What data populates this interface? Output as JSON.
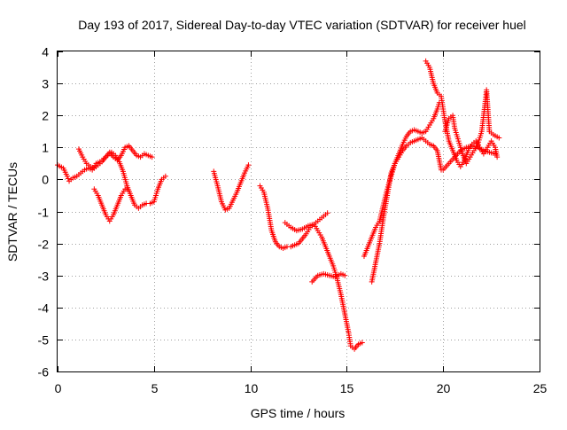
{
  "chart_data": {
    "type": "scatter",
    "title": "Day 193 of 2017, Sidereal Day-to-day VTEC variation (SDTVAR) for receiver huel",
    "xlabel": "GPS time / hours",
    "ylabel": "SDTVAR / TECUs",
    "xlim": [
      0,
      25
    ],
    "ylim": [
      -6,
      4
    ],
    "xticks": [
      0,
      5,
      10,
      15,
      20,
      25
    ],
    "yticks": [
      -6,
      -5,
      -4,
      -3,
      -2,
      -1,
      0,
      1,
      2,
      3,
      4
    ],
    "grid": true,
    "marker": "+",
    "color": "#ff0000",
    "series": [
      {
        "name": "SDTVAR",
        "segments": [
          [
            [
              0.0,
              0.45
            ],
            [
              0.3,
              0.35
            ],
            [
              0.5,
              0.1
            ],
            [
              0.6,
              -0.05
            ],
            [
              0.8,
              0.05
            ],
            [
              1.0,
              0.1
            ],
            [
              1.2,
              0.2
            ],
            [
              1.4,
              0.3
            ],
            [
              1.6,
              0.35
            ],
            [
              1.8,
              0.3
            ],
            [
              2.0,
              0.5
            ],
            [
              2.2,
              0.55
            ],
            [
              2.4,
              0.65
            ],
            [
              2.6,
              0.75
            ],
            [
              2.8,
              0.85
            ],
            [
              3.0,
              0.75
            ],
            [
              3.2,
              0.55
            ],
            [
              3.4,
              0.25
            ],
            [
              3.6,
              -0.2
            ],
            [
              3.8,
              -0.5
            ],
            [
              4.0,
              -0.8
            ],
            [
              4.2,
              -0.9
            ],
            [
              4.4,
              -0.8
            ],
            [
              4.6,
              -0.75
            ],
            [
              4.8,
              -0.75
            ],
            [
              5.0,
              -0.7
            ],
            [
              5.2,
              -0.3
            ],
            [
              5.4,
              0.0
            ],
            [
              5.6,
              0.1
            ]
          ],
          [
            [
              1.1,
              0.95
            ],
            [
              1.3,
              0.7
            ],
            [
              1.5,
              0.5
            ],
            [
              1.7,
              0.4
            ],
            [
              1.9,
              0.35
            ],
            [
              2.1,
              0.45
            ],
            [
              2.3,
              0.55
            ],
            [
              2.5,
              0.7
            ],
            [
              2.7,
              0.85
            ],
            [
              2.9,
              0.7
            ],
            [
              3.1,
              0.6
            ],
            [
              3.3,
              0.75
            ],
            [
              3.5,
              1.0
            ],
            [
              3.7,
              1.05
            ],
            [
              3.9,
              0.9
            ],
            [
              4.1,
              0.75
            ],
            [
              4.3,
              0.7
            ],
            [
              4.5,
              0.8
            ],
            [
              4.7,
              0.75
            ],
            [
              4.9,
              0.7
            ]
          ],
          [
            [
              1.9,
              -0.3
            ],
            [
              2.1,
              -0.5
            ],
            [
              2.3,
              -0.8
            ],
            [
              2.5,
              -1.1
            ],
            [
              2.7,
              -1.3
            ],
            [
              2.9,
              -1.1
            ],
            [
              3.1,
              -0.8
            ],
            [
              3.3,
              -0.5
            ],
            [
              3.5,
              -0.3
            ],
            [
              3.6,
              -0.3
            ]
          ],
          [
            [
              8.1,
              0.25
            ],
            [
              8.3,
              -0.2
            ],
            [
              8.5,
              -0.7
            ],
            [
              8.7,
              -0.95
            ],
            [
              8.9,
              -0.9
            ],
            [
              9.1,
              -0.65
            ],
            [
              9.3,
              -0.4
            ],
            [
              9.5,
              -0.1
            ],
            [
              9.7,
              0.2
            ],
            [
              9.9,
              0.45
            ]
          ],
          [
            [
              10.5,
              -0.2
            ],
            [
              10.7,
              -0.4
            ],
            [
              10.9,
              -0.9
            ],
            [
              11.1,
              -1.6
            ],
            [
              11.3,
              -1.95
            ],
            [
              11.5,
              -2.1
            ],
            [
              11.7,
              -2.15
            ],
            [
              11.9,
              -2.1
            ],
            [
              12.1,
              -2.1
            ],
            [
              12.3,
              -2.05
            ],
            [
              12.5,
              -2.0
            ],
            [
              12.7,
              -1.85
            ],
            [
              12.9,
              -1.7
            ],
            [
              13.1,
              -1.5
            ],
            [
              13.3,
              -1.4
            ],
            [
              13.5,
              -1.3
            ],
            [
              13.7,
              -1.2
            ],
            [
              13.9,
              -1.1
            ],
            [
              14.0,
              -1.05
            ]
          ],
          [
            [
              11.8,
              -1.35
            ],
            [
              12.1,
              -1.5
            ],
            [
              12.4,
              -1.6
            ],
            [
              12.7,
              -1.55
            ],
            [
              13.0,
              -1.45
            ],
            [
              13.3,
              -1.4
            ],
            [
              13.5,
              -1.6
            ],
            [
              13.7,
              -1.8
            ],
            [
              13.9,
              -2.1
            ],
            [
              14.1,
              -2.4
            ],
            [
              14.3,
              -2.7
            ],
            [
              14.5,
              -3.1
            ],
            [
              14.7,
              -3.6
            ],
            [
              14.9,
              -4.2
            ],
            [
              15.1,
              -4.8
            ],
            [
              15.2,
              -5.2
            ],
            [
              15.4,
              -5.3
            ],
            [
              15.6,
              -5.15
            ],
            [
              15.8,
              -5.1
            ]
          ],
          [
            [
              13.2,
              -3.2
            ],
            [
              13.5,
              -3.0
            ],
            [
              13.8,
              -2.95
            ],
            [
              14.1,
              -3.0
            ],
            [
              14.4,
              -3.05
            ],
            [
              14.7,
              -2.95
            ],
            [
              14.9,
              -3.0
            ]
          ],
          [
            [
              15.9,
              -2.4
            ],
            [
              16.1,
              -2.1
            ],
            [
              16.3,
              -1.8
            ],
            [
              16.5,
              -1.5
            ],
            [
              16.7,
              -1.3
            ],
            [
              16.9,
              -0.8
            ],
            [
              17.1,
              -0.3
            ],
            [
              17.3,
              0.1
            ],
            [
              17.5,
              0.5
            ],
            [
              17.7,
              0.8
            ],
            [
              17.9,
              1.1
            ],
            [
              18.1,
              1.35
            ],
            [
              18.3,
              1.5
            ],
            [
              18.5,
              1.55
            ],
            [
              18.7,
              1.5
            ],
            [
              18.9,
              1.45
            ],
            [
              19.1,
              1.5
            ],
            [
              19.3,
              1.7
            ],
            [
              19.5,
              1.9
            ],
            [
              19.7,
              2.2
            ],
            [
              19.8,
              2.4
            ]
          ],
          [
            [
              16.3,
              -3.2
            ],
            [
              16.5,
              -2.6
            ],
            [
              16.7,
              -2.0
            ],
            [
              16.9,
              -1.2
            ],
            [
              17.1,
              -0.5
            ],
            [
              17.3,
              0.2
            ],
            [
              17.5,
              0.5
            ],
            [
              17.7,
              0.7
            ],
            [
              17.9,
              0.9
            ],
            [
              18.1,
              1.05
            ],
            [
              18.3,
              1.15
            ],
            [
              18.5,
              1.2
            ],
            [
              18.7,
              1.25
            ],
            [
              18.9,
              1.3
            ],
            [
              19.1,
              1.2
            ],
            [
              19.3,
              1.1
            ],
            [
              19.5,
              1.05
            ],
            [
              19.7,
              0.9
            ],
            [
              19.9,
              0.3
            ]
          ],
          [
            [
              19.1,
              3.7
            ],
            [
              19.3,
              3.5
            ],
            [
              19.5,
              3.0
            ],
            [
              19.7,
              2.7
            ],
            [
              19.9,
              2.6
            ],
            [
              20.0,
              2.2
            ],
            [
              20.1,
              1.8
            ],
            [
              20.3,
              1.2
            ],
            [
              20.5,
              0.9
            ],
            [
              20.7,
              0.6
            ],
            [
              20.9,
              0.4
            ],
            [
              21.1,
              0.6
            ],
            [
              21.3,
              0.9
            ],
            [
              21.5,
              1.1
            ],
            [
              21.7,
              1.2
            ],
            [
              21.9,
              1.0
            ],
            [
              22.1,
              0.8
            ],
            [
              22.3,
              1.0
            ],
            [
              22.5,
              1.2
            ],
            [
              22.7,
              1.0
            ],
            [
              22.8,
              0.7
            ]
          ],
          [
            [
              20.1,
              1.5
            ],
            [
              20.3,
              1.9
            ],
            [
              20.5,
              2.0
            ],
            [
              20.6,
              1.6
            ],
            [
              20.8,
              1.2
            ],
            [
              21.0,
              0.8
            ],
            [
              21.2,
              0.5
            ],
            [
              21.4,
              0.7
            ],
            [
              21.6,
              0.9
            ],
            [
              21.8,
              1.1
            ],
            [
              22.0,
              1.5
            ],
            [
              22.1,
              2.0
            ],
            [
              22.2,
              2.5
            ],
            [
              22.25,
              2.8
            ],
            [
              22.4,
              1.5
            ],
            [
              22.6,
              1.4
            ],
            [
              22.9,
              1.3
            ]
          ],
          [
            [
              20.0,
              0.3
            ],
            [
              20.3,
              0.5
            ],
            [
              20.6,
              0.7
            ],
            [
              20.9,
              0.9
            ],
            [
              21.2,
              1.0
            ],
            [
              21.5,
              1.05
            ],
            [
              21.8,
              1.0
            ],
            [
              22.1,
              0.9
            ],
            [
              22.4,
              0.85
            ],
            [
              22.7,
              0.8
            ]
          ]
        ]
      }
    ]
  }
}
